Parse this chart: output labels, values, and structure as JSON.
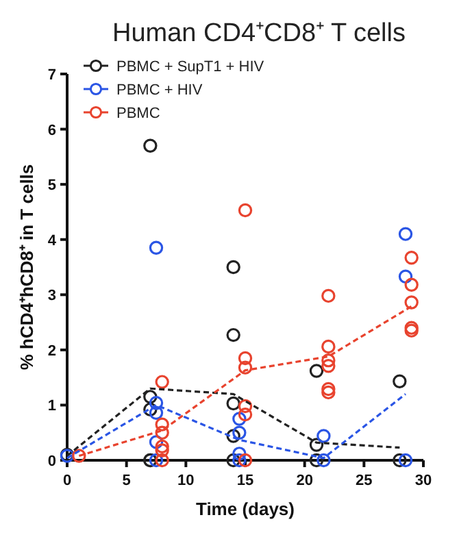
{
  "chart_data": {
    "type": "scatter",
    "title": "Human CD4⁺CD8⁺ T cells",
    "xlabel": "Time (days)",
    "ylabel": "% hCD4⁺hCD8⁺ in T cells",
    "xlim": [
      0,
      30
    ],
    "xticks": [
      0,
      5,
      10,
      15,
      20,
      25,
      30
    ],
    "ylim": [
      0,
      7
    ],
    "yticks": [
      0,
      1,
      2,
      3,
      4,
      5,
      6,
      7
    ],
    "grid": false,
    "legend": "top left",
    "marker": "circle",
    "series": [
      {
        "name": "PBMC + SupT1 + HIV",
        "color": "#222222",
        "x": [
          0,
          7,
          7,
          7,
          7,
          7,
          14,
          14,
          14,
          14,
          14,
          21,
          21,
          21,
          28,
          28
        ],
        "values": [
          0.1,
          5.7,
          1.15,
          0.92,
          0,
          0,
          3.5,
          2.27,
          1.03,
          0.44,
          0,
          1.62,
          0.28,
          0,
          1.43,
          0
        ]
      },
      {
        "name": "PBMC + HIV",
        "color": "#2a55e5",
        "x": [
          0,
          7.5,
          7.5,
          7.5,
          7.5,
          7.5,
          14.5,
          14.5,
          14.5,
          14.5,
          21.6,
          21.6,
          28.5,
          28.5,
          28.5
        ],
        "values": [
          0.08,
          3.85,
          1.04,
          0.86,
          0.33,
          0,
          0.75,
          0.5,
          0.12,
          0,
          0.44,
          0,
          4.1,
          3.33,
          0
        ]
      },
      {
        "name": "PBMC",
        "color": "#e8432e",
        "x": [
          1,
          8,
          8,
          8,
          8,
          8,
          8,
          15,
          15,
          15,
          15,
          15,
          15,
          22,
          22,
          22,
          22,
          22,
          22,
          29,
          29,
          29,
          29,
          29
        ],
        "values": [
          0.08,
          1.42,
          0.65,
          0.5,
          0.25,
          0.18,
          0,
          4.53,
          1.85,
          1.68,
          0.98,
          0.83,
          0,
          2.98,
          2.06,
          1.81,
          1.71,
          1.29,
          1.23,
          3.67,
          3.18,
          2.86,
          2.4,
          2.35
        ]
      },
      {
        "type": "line",
        "line_style": "dashed",
        "marker": "none",
        "color": "#222222",
        "x": [
          0,
          7,
          14,
          21,
          28
        ],
        "values": [
          0.08,
          1.3,
          1.2,
          0.32,
          0.23
        ]
      },
      {
        "type": "line",
        "line_style": "dashed",
        "marker": "none",
        "color": "#2a55e5",
        "x": [
          0,
          7.5,
          14.5,
          21.6,
          28.5
        ],
        "values": [
          0.04,
          1.0,
          0.37,
          0.04,
          1.2
        ]
      },
      {
        "type": "line",
        "line_style": "dashed",
        "marker": "none",
        "color": "#e8432e",
        "x": [
          1,
          8,
          15,
          22,
          29
        ],
        "values": [
          0.08,
          0.54,
          1.63,
          1.88,
          2.79
        ]
      }
    ]
  }
}
